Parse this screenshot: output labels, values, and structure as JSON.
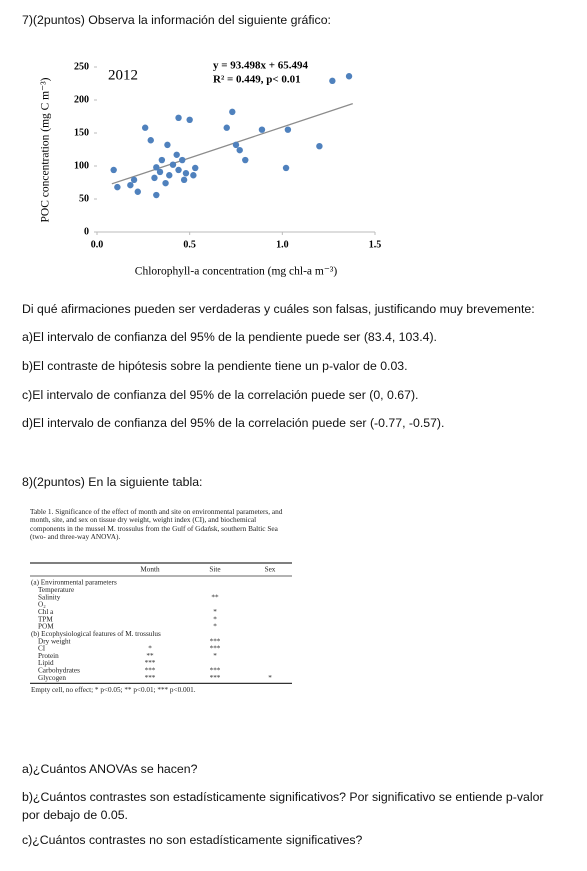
{
  "q7": {
    "heading": "7)(2puntos) Observa la información del siguiente gráfico:",
    "prompt": "Di qué afirmaciones pueden ser verdaderas y cuáles son falsas, justificando muy brevemente:",
    "items": [
      "a)El intervalo de confianza del 95% de la pendiente puede ser (83.4, 103.4).",
      "b)El contraste de hipótesis sobre la pendiente tiene un p-valor de 0.03.",
      "c)El intervalo de confianza del 95% de la correlación puede ser (0, 0.67).",
      "d)El intervalo de confianza del 95% de la correlación puede ser (-0.77, -0.57)."
    ]
  },
  "chart_data": {
    "type": "scatter",
    "annotations": [
      "2012",
      "y = 93.498x + 65.494",
      "R² = 0.449, p< 0.01"
    ],
    "x_label": "Chlorophyll-a concentration (mg chl-a m⁻³)",
    "y_label": "POC concentration (mg C m⁻³)",
    "x": [
      0.09,
      0.11,
      0.18,
      0.2,
      0.22,
      0.26,
      0.29,
      0.31,
      0.32,
      0.32,
      0.34,
      0.35,
      0.37,
      0.38,
      0.39,
      0.41,
      0.43,
      0.44,
      0.44,
      0.46,
      0.47,
      0.48,
      0.5,
      0.52,
      0.53,
      0.7,
      0.73,
      0.75,
      0.77,
      0.8,
      0.89,
      1.02,
      1.03,
      1.2,
      1.27,
      1.36
    ],
    "values": [
      94,
      68,
      71,
      79,
      61,
      158,
      139,
      82,
      98,
      56,
      91,
      109,
      74,
      132,
      86,
      102,
      117,
      173,
      94,
      109,
      79,
      89,
      170,
      86,
      97,
      158,
      182,
      132,
      124,
      109,
      155,
      97,
      155,
      130,
      229,
      236
    ],
    "color": "#4f81bd",
    "trendline": {
      "x": [
        0.08,
        1.38
      ],
      "values": [
        73,
        194.5
      ],
      "color": "#8c8c8c"
    },
    "xlim": [
      0,
      1.5
    ],
    "xticks": [
      {
        "value": 0,
        "label": "0.0"
      },
      0.5,
      {
        "value": 1,
        "label": "1.0"
      },
      1.5
    ],
    "ylim": [
      0,
      250
    ],
    "yticks": [
      0,
      50,
      100,
      150,
      200,
      250
    ],
    "grid": false
  },
  "q8": {
    "heading": "8)(2puntos) En la siguiente tabla:",
    "items": [
      "a)¿Cuántos ANOVAs se hacen?",
      "b)¿Cuántos contrastes son estadísticamente significativos? Por significativo se entiende p-valor por debajo de 0.05.",
      "c)¿Cuántos contrastes no son estadísticamente significatives?"
    ]
  },
  "table": {
    "caption": "Table 1.  Significance of the effect of month and site on environmental parameters, and month, site, and sex on tissue dry weight, weight index (CI), and biochemical components in the mussel M. trossulus from the Gulf of Gdańsk, southern Baltic Sea (two- and three-way ANOVA).",
    "columns": [
      "Month",
      "Site",
      "Sex"
    ],
    "sections": [
      {
        "title": "(a) Environmental parameters",
        "rows": [
          [
            "Temperature",
            null,
            null,
            null
          ],
          [
            "Salinity",
            null,
            "**",
            null
          ],
          [
            "O₂",
            null,
            null,
            null
          ],
          [
            "Chl a",
            null,
            "*",
            null
          ],
          [
            "TPM",
            null,
            "*",
            null
          ],
          [
            "POM",
            null,
            "*",
            null
          ]
        ]
      },
      {
        "title": "(b) Ecophysiological features of M. trossulus",
        "rows": [
          [
            "Dry weight",
            null,
            "***",
            null
          ],
          [
            "CI",
            "*",
            "***",
            null
          ],
          [
            "Protein",
            "**",
            "*",
            null
          ],
          [
            "Lipid",
            "***",
            null,
            null
          ],
          [
            "Carbohydrates",
            "***",
            "***",
            null
          ],
          [
            "Glycogen",
            "***",
            "***",
            "*"
          ]
        ]
      }
    ],
    "footnote": "Empty cell, no effect; * p<0.05; ** p<0.01; *** p<0.001."
  }
}
